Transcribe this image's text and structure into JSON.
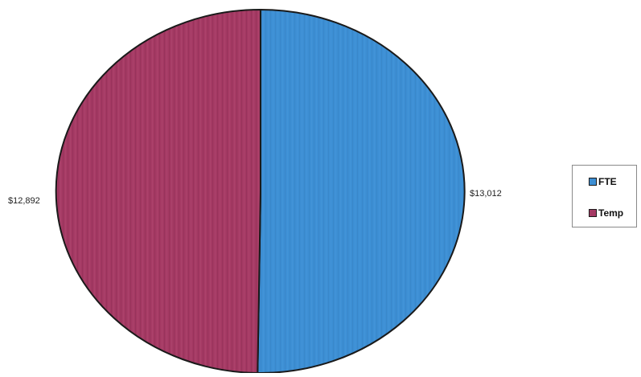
{
  "chart_data": {
    "type": "pie",
    "title": "",
    "slices": [
      {
        "label": "FTE",
        "value": 13012,
        "display": "$13,012",
        "color": "#3d8fd4"
      },
      {
        "label": "Temp",
        "value": 12892,
        "display": "$12,892",
        "color": "#a53a64"
      }
    ],
    "legend": {
      "position": "right",
      "entries": [
        "FTE",
        "Temp"
      ]
    }
  }
}
